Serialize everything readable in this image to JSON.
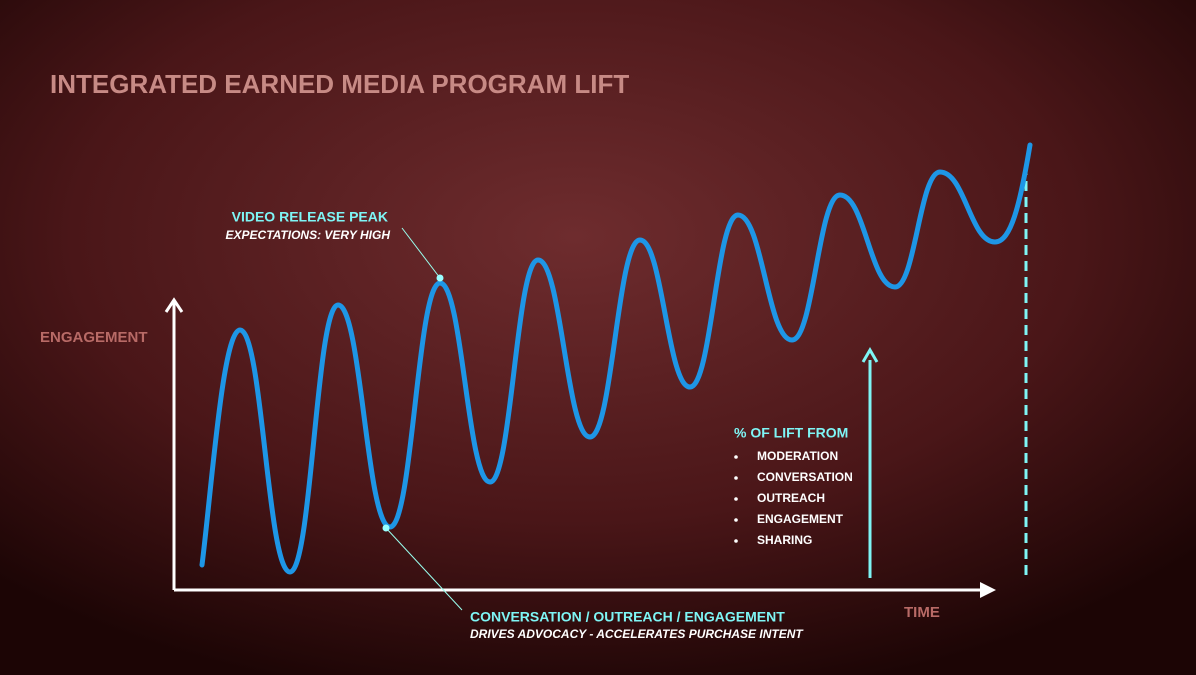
{
  "title": "INTEGRATED EARNED MEDIA PROGRAM LIFT",
  "y_axis_label": "ENGAGEMENT",
  "x_axis_label": "TIME",
  "annotations": {
    "peak": {
      "title": "VIDEO RELEASE PEAK",
      "subtitle": "EXPECTATIONS:  VERY HIGH"
    },
    "trough": {
      "title": "CONVERSATION / OUTREACH / ENGAGEMENT",
      "subtitle": "DRIVES  ADVOCACY - ACCELERATES PURCHASE  INTENT"
    },
    "lift": {
      "title": "% OF LIFT FROM",
      "items": [
        "MODERATION",
        "CONVERSATION",
        "OUTREACH",
        "ENGAGEMENT",
        "SHARING"
      ]
    }
  }
}
